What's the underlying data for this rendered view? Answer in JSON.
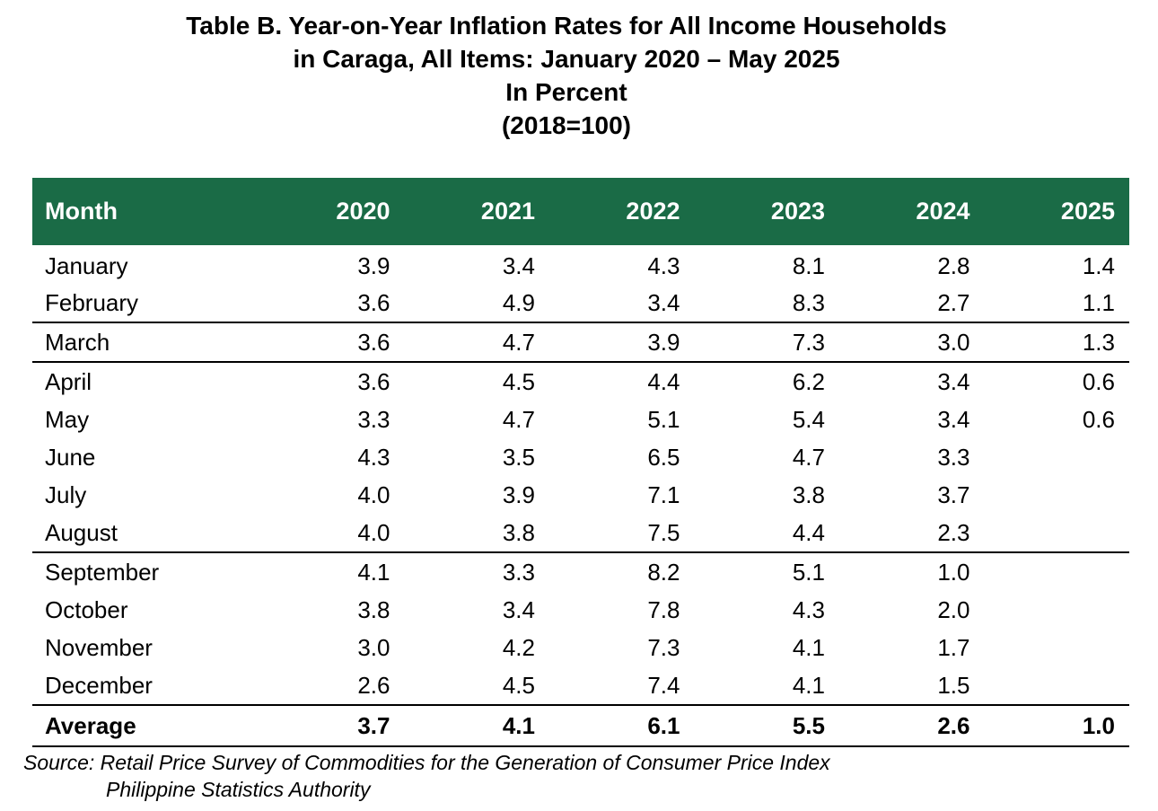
{
  "title": {
    "line1": "Table B. Year-on-Year Inflation Rates for All Income Households",
    "line2": "in Caraga, All Items: January 2020 – May 2025",
    "line3": "In Percent",
    "line4": "(2018=100)"
  },
  "table": {
    "headers": [
      "Month",
      "2020",
      "2021",
      "2022",
      "2023",
      "2024",
      "2025"
    ],
    "rows": [
      [
        "January",
        "3.9",
        "3.4",
        "4.3",
        "8.1",
        "2.8",
        "1.4"
      ],
      [
        "February",
        "3.6",
        "4.9",
        "3.4",
        "8.3",
        "2.7",
        "1.1"
      ],
      [
        "March",
        "3.6",
        "4.7",
        "3.9",
        "7.3",
        "3.0",
        "1.3"
      ],
      [
        "April",
        "3.6",
        "4.5",
        "4.4",
        "6.2",
        "3.4",
        "0.6"
      ],
      [
        "May",
        "3.3",
        "4.7",
        "5.1",
        "5.4",
        "3.4",
        "0.6"
      ],
      [
        "June",
        "4.3",
        "3.5",
        "6.5",
        "4.7",
        "3.3",
        ""
      ],
      [
        "July",
        "4.0",
        "3.9",
        "7.1",
        "3.8",
        "3.7",
        ""
      ],
      [
        "August",
        "4.0",
        "3.8",
        "7.5",
        "4.4",
        "2.3",
        ""
      ],
      [
        "September",
        "4.1",
        "3.3",
        "8.2",
        "5.1",
        "1.0",
        ""
      ],
      [
        "October",
        "3.8",
        "3.4",
        "7.8",
        "4.3",
        "2.0",
        ""
      ],
      [
        "November",
        "3.0",
        "4.2",
        "7.3",
        "4.1",
        "1.7",
        ""
      ],
      [
        "December",
        "2.6",
        "4.5",
        "7.4",
        "4.1",
        "1.5",
        ""
      ]
    ],
    "average": [
      "Average",
      "3.7",
      "4.1",
      "6.1",
      "5.5",
      "2.6",
      "1.0"
    ]
  },
  "source": {
    "line1": "Source: Retail Price Survey of Commodities for the Generation of Consumer Price Index",
    "line2": "Philippine Statistics Authority"
  },
  "colors": {
    "header_background": "#1a6b46",
    "header_text": "#ffffff"
  }
}
